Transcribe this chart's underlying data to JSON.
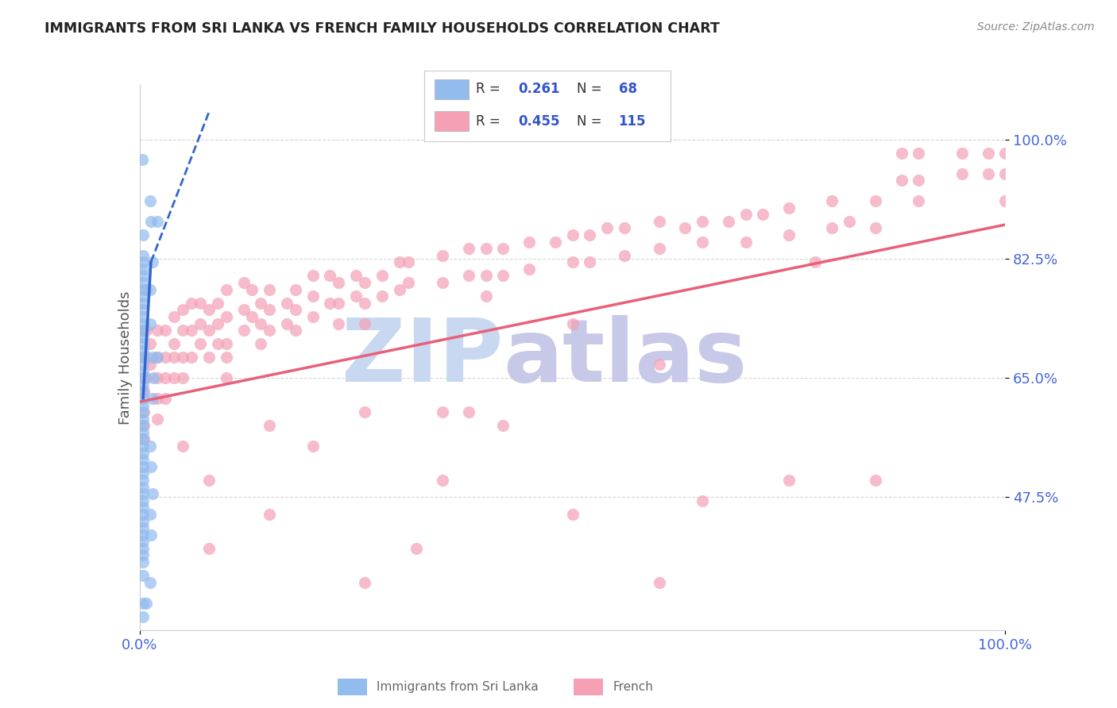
{
  "title": "IMMIGRANTS FROM SRI LANKA VS FRENCH FAMILY HOUSEHOLDS CORRELATION CHART",
  "source_text": "Source: ZipAtlas.com",
  "ylabel": "Family Households",
  "y_tick_values": [
    0.475,
    0.65,
    0.825,
    1.0
  ],
  "xlim": [
    0.0,
    1.0
  ],
  "ylim": [
    0.28,
    1.08
  ],
  "sri_lanka_color": "#92bbee",
  "sri_lanka_edge": "none",
  "french_color": "#f5a0b5",
  "french_edge": "none",
  "trendline_sl_color": "#3366cc",
  "trendline_fr_color": "#e8607a",
  "axis_color": "#4466dd",
  "title_color": "#222222",
  "watermark_zip_color": "#c8d8f0",
  "watermark_atlas_color": "#c8c8e8",
  "background_color": "#ffffff",
  "grid_color": "#cccccc",
  "legend_r_color": "#333333",
  "legend_n_color": "#333333",
  "legend_val_color": "#3355cc",
  "sri_lanka_points": [
    [
      0.003,
      0.97
    ],
    [
      0.012,
      0.91
    ],
    [
      0.004,
      0.86
    ],
    [
      0.004,
      0.83
    ],
    [
      0.004,
      0.82
    ],
    [
      0.004,
      0.81
    ],
    [
      0.004,
      0.8
    ],
    [
      0.004,
      0.79
    ],
    [
      0.004,
      0.78
    ],
    [
      0.004,
      0.77
    ],
    [
      0.004,
      0.76
    ],
    [
      0.004,
      0.75
    ],
    [
      0.004,
      0.74
    ],
    [
      0.004,
      0.73
    ],
    [
      0.004,
      0.72
    ],
    [
      0.004,
      0.71
    ],
    [
      0.004,
      0.7
    ],
    [
      0.004,
      0.69
    ],
    [
      0.004,
      0.68
    ],
    [
      0.004,
      0.67
    ],
    [
      0.004,
      0.66
    ],
    [
      0.004,
      0.65
    ],
    [
      0.004,
      0.64
    ],
    [
      0.004,
      0.63
    ],
    [
      0.004,
      0.62
    ],
    [
      0.004,
      0.61
    ],
    [
      0.004,
      0.6
    ],
    [
      0.004,
      0.59
    ],
    [
      0.004,
      0.58
    ],
    [
      0.004,
      0.57
    ],
    [
      0.004,
      0.56
    ],
    [
      0.004,
      0.55
    ],
    [
      0.004,
      0.54
    ],
    [
      0.004,
      0.53
    ],
    [
      0.004,
      0.52
    ],
    [
      0.004,
      0.51
    ],
    [
      0.004,
      0.5
    ],
    [
      0.004,
      0.49
    ],
    [
      0.004,
      0.48
    ],
    [
      0.004,
      0.47
    ],
    [
      0.004,
      0.46
    ],
    [
      0.004,
      0.45
    ],
    [
      0.004,
      0.44
    ],
    [
      0.004,
      0.43
    ],
    [
      0.004,
      0.42
    ],
    [
      0.004,
      0.41
    ],
    [
      0.004,
      0.4
    ],
    [
      0.004,
      0.39
    ],
    [
      0.004,
      0.38
    ],
    [
      0.012,
      0.78
    ],
    [
      0.012,
      0.73
    ],
    [
      0.015,
      0.68
    ],
    [
      0.016,
      0.65
    ],
    [
      0.015,
      0.62
    ],
    [
      0.012,
      0.55
    ],
    [
      0.013,
      0.52
    ],
    [
      0.015,
      0.48
    ],
    [
      0.004,
      0.36
    ],
    [
      0.004,
      0.32
    ],
    [
      0.004,
      0.3
    ],
    [
      0.015,
      0.82
    ],
    [
      0.013,
      0.88
    ],
    [
      0.012,
      0.45
    ],
    [
      0.013,
      0.42
    ],
    [
      0.02,
      0.88
    ],
    [
      0.02,
      0.68
    ],
    [
      0.012,
      0.35
    ],
    [
      0.008,
      0.32
    ]
  ],
  "french_points": [
    [
      0.005,
      0.72
    ],
    [
      0.005,
      0.68
    ],
    [
      0.005,
      0.65
    ],
    [
      0.005,
      0.63
    ],
    [
      0.005,
      0.6
    ],
    [
      0.005,
      0.58
    ],
    [
      0.005,
      0.56
    ],
    [
      0.008,
      0.72
    ],
    [
      0.008,
      0.68
    ],
    [
      0.008,
      0.65
    ],
    [
      0.012,
      0.7
    ],
    [
      0.012,
      0.67
    ],
    [
      0.02,
      0.72
    ],
    [
      0.02,
      0.68
    ],
    [
      0.02,
      0.65
    ],
    [
      0.02,
      0.62
    ],
    [
      0.02,
      0.59
    ],
    [
      0.03,
      0.72
    ],
    [
      0.03,
      0.68
    ],
    [
      0.03,
      0.65
    ],
    [
      0.03,
      0.62
    ],
    [
      0.04,
      0.74
    ],
    [
      0.04,
      0.7
    ],
    [
      0.04,
      0.68
    ],
    [
      0.04,
      0.65
    ],
    [
      0.05,
      0.75
    ],
    [
      0.05,
      0.72
    ],
    [
      0.05,
      0.68
    ],
    [
      0.05,
      0.65
    ],
    [
      0.05,
      0.55
    ],
    [
      0.06,
      0.76
    ],
    [
      0.06,
      0.72
    ],
    [
      0.06,
      0.68
    ],
    [
      0.07,
      0.76
    ],
    [
      0.07,
      0.73
    ],
    [
      0.07,
      0.7
    ],
    [
      0.08,
      0.75
    ],
    [
      0.08,
      0.72
    ],
    [
      0.08,
      0.68
    ],
    [
      0.08,
      0.5
    ],
    [
      0.08,
      0.4
    ],
    [
      0.09,
      0.76
    ],
    [
      0.09,
      0.73
    ],
    [
      0.09,
      0.7
    ],
    [
      0.1,
      0.78
    ],
    [
      0.1,
      0.74
    ],
    [
      0.1,
      0.7
    ],
    [
      0.1,
      0.68
    ],
    [
      0.1,
      0.65
    ],
    [
      0.12,
      0.79
    ],
    [
      0.12,
      0.75
    ],
    [
      0.12,
      0.72
    ],
    [
      0.13,
      0.78
    ],
    [
      0.13,
      0.74
    ],
    [
      0.14,
      0.76
    ],
    [
      0.14,
      0.73
    ],
    [
      0.14,
      0.7
    ],
    [
      0.15,
      0.78
    ],
    [
      0.15,
      0.75
    ],
    [
      0.15,
      0.72
    ],
    [
      0.15,
      0.58
    ],
    [
      0.15,
      0.45
    ],
    [
      0.17,
      0.76
    ],
    [
      0.17,
      0.73
    ],
    [
      0.18,
      0.78
    ],
    [
      0.18,
      0.75
    ],
    [
      0.18,
      0.72
    ],
    [
      0.2,
      0.8
    ],
    [
      0.2,
      0.77
    ],
    [
      0.2,
      0.74
    ],
    [
      0.2,
      0.55
    ],
    [
      0.22,
      0.8
    ],
    [
      0.22,
      0.76
    ],
    [
      0.23,
      0.79
    ],
    [
      0.23,
      0.76
    ],
    [
      0.23,
      0.73
    ],
    [
      0.25,
      0.8
    ],
    [
      0.25,
      0.77
    ],
    [
      0.26,
      0.79
    ],
    [
      0.26,
      0.76
    ],
    [
      0.26,
      0.73
    ],
    [
      0.26,
      0.35
    ],
    [
      0.26,
      0.6
    ],
    [
      0.28,
      0.8
    ],
    [
      0.28,
      0.77
    ],
    [
      0.3,
      0.82
    ],
    [
      0.3,
      0.78
    ],
    [
      0.31,
      0.82
    ],
    [
      0.31,
      0.79
    ],
    [
      0.32,
      0.4
    ],
    [
      0.35,
      0.83
    ],
    [
      0.35,
      0.79
    ],
    [
      0.35,
      0.6
    ],
    [
      0.35,
      0.5
    ],
    [
      0.38,
      0.84
    ],
    [
      0.38,
      0.8
    ],
    [
      0.38,
      0.6
    ],
    [
      0.4,
      0.84
    ],
    [
      0.4,
      0.8
    ],
    [
      0.4,
      0.77
    ],
    [
      0.42,
      0.84
    ],
    [
      0.42,
      0.8
    ],
    [
      0.42,
      0.58
    ],
    [
      0.45,
      0.85
    ],
    [
      0.45,
      0.81
    ],
    [
      0.48,
      0.85
    ],
    [
      0.5,
      0.86
    ],
    [
      0.5,
      0.82
    ],
    [
      0.5,
      0.73
    ],
    [
      0.5,
      0.45
    ],
    [
      0.52,
      0.86
    ],
    [
      0.52,
      0.82
    ],
    [
      0.54,
      0.87
    ],
    [
      0.56,
      0.87
    ],
    [
      0.56,
      0.83
    ],
    [
      0.6,
      0.88
    ],
    [
      0.6,
      0.84
    ],
    [
      0.6,
      0.67
    ],
    [
      0.6,
      0.35
    ],
    [
      0.63,
      0.87
    ],
    [
      0.65,
      0.88
    ],
    [
      0.65,
      0.85
    ],
    [
      0.65,
      0.47
    ],
    [
      0.68,
      0.88
    ],
    [
      0.7,
      0.89
    ],
    [
      0.7,
      0.85
    ],
    [
      0.72,
      0.89
    ],
    [
      0.75,
      0.9
    ],
    [
      0.75,
      0.86
    ],
    [
      0.75,
      0.5
    ],
    [
      0.78,
      0.82
    ],
    [
      0.8,
      0.91
    ],
    [
      0.8,
      0.87
    ],
    [
      0.82,
      0.88
    ],
    [
      0.85,
      0.91
    ],
    [
      0.85,
      0.87
    ],
    [
      0.85,
      0.5
    ],
    [
      0.88,
      0.98
    ],
    [
      0.88,
      0.94
    ],
    [
      0.9,
      0.98
    ],
    [
      0.9,
      0.94
    ],
    [
      0.9,
      0.91
    ],
    [
      0.95,
      0.98
    ],
    [
      0.95,
      0.95
    ],
    [
      0.98,
      0.98
    ],
    [
      0.98,
      0.95
    ],
    [
      1.0,
      0.98
    ],
    [
      1.0,
      0.95
    ],
    [
      1.0,
      0.91
    ],
    [
      0.008,
      0.78
    ]
  ]
}
